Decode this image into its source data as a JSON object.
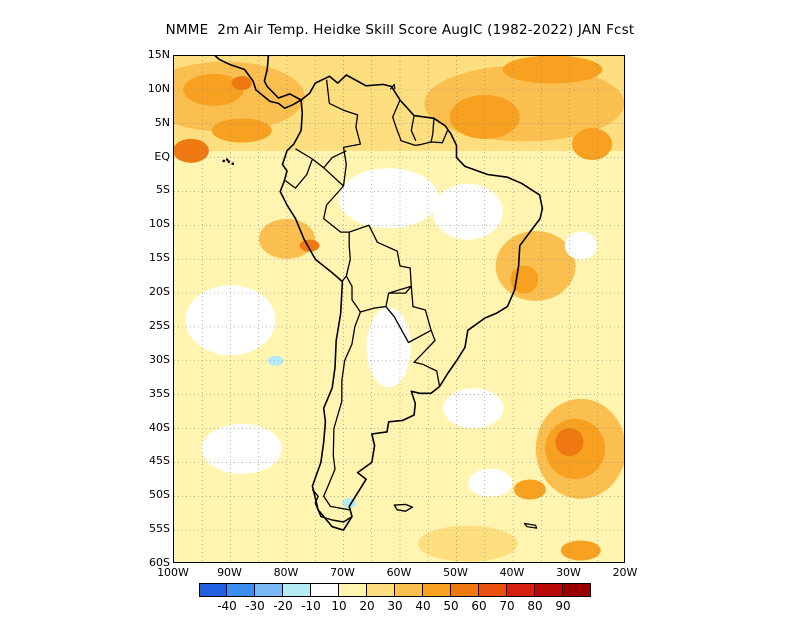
{
  "title": "NMME  2m Air Temp. Heidke Skill Score AugIC (1982-2022) JAN Fcst",
  "map": {
    "y_axis_labels": [
      "15N",
      "10N",
      "5N",
      "EQ",
      "5S",
      "10S",
      "15S",
      "20S",
      "25S",
      "30S",
      "35S",
      "40S",
      "45S",
      "50S",
      "55S",
      "60S"
    ],
    "x_axis_labels": [
      "100W",
      "90W",
      "80W",
      "70W",
      "60W",
      "50W",
      "40W",
      "30W",
      "20W"
    ],
    "lat_range": [
      -60,
      15
    ],
    "lon_range": [
      -100,
      -20
    ],
    "grid": "dotted"
  },
  "colorbar": {
    "colors": [
      "#1f5fe0",
      "#3c8ef0",
      "#78b8f5",
      "#b4ecf5",
      "#ffffff",
      "#fff5b0",
      "#fddf80",
      "#fbbf50",
      "#f8a020",
      "#f07810",
      "#e85010",
      "#d82010",
      "#b80808",
      "#980000"
    ],
    "labels": [
      "-40",
      "-30",
      "-20",
      "-10",
      "10",
      "20",
      "30",
      "40",
      "50",
      "60",
      "70",
      "80",
      "90"
    ]
  },
  "colors": {
    "background": "#ffffff",
    "land_outline": "#000000"
  }
}
